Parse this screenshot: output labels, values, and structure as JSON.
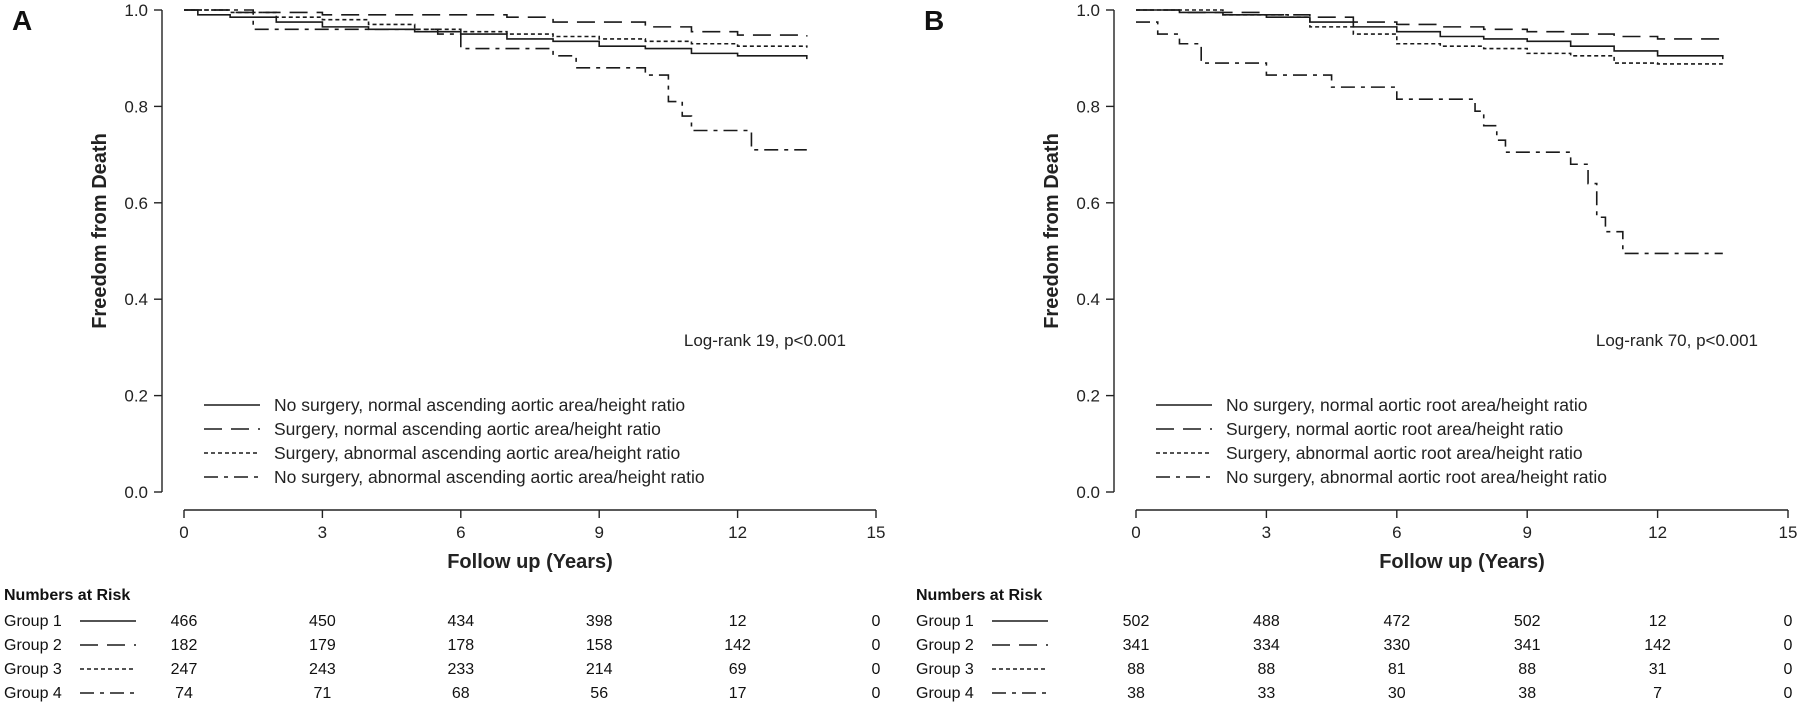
{
  "chart_data": [
    {
      "type": "line",
      "panel_label": "A",
      "xlabel": "Follow up (Years)",
      "ylabel": "Freedom from Death",
      "xlim": [
        0,
        15
      ],
      "ylim": [
        0,
        1.0
      ],
      "xticks": [
        "0",
        "3",
        "6",
        "9",
        "12",
        "15"
      ],
      "yticks": [
        "0.0",
        "0.2",
        "0.4",
        "0.6",
        "0.8",
        "1.0"
      ],
      "grid": false,
      "legend_position": "bottom-left",
      "annotation": "Log-rank 19, p<0.001",
      "series": [
        {
          "name": "No surgery, normal ascending aortic area/height ratio",
          "style": "solid",
          "points": [
            [
              0,
              1.0
            ],
            [
              0.3,
              0.99
            ],
            [
              1,
              0.985
            ],
            [
              2,
              0.975
            ],
            [
              3,
              0.965
            ],
            [
              4,
              0.96
            ],
            [
              5,
              0.955
            ],
            [
              6,
              0.95
            ],
            [
              7,
              0.94
            ],
            [
              8,
              0.935
            ],
            [
              9,
              0.925
            ],
            [
              10,
              0.92
            ],
            [
              11,
              0.91
            ],
            [
              12,
              0.905
            ],
            [
              13.5,
              0.898
            ]
          ]
        },
        {
          "name": "Surgery, normal ascending aortic area/height ratio",
          "style": "long-dash",
          "points": [
            [
              0,
              1.0
            ],
            [
              1,
              0.995
            ],
            [
              3,
              0.99
            ],
            [
              5,
              0.99
            ],
            [
              7,
              0.985
            ],
            [
              8,
              0.975
            ],
            [
              9,
              0.975
            ],
            [
              10,
              0.965
            ],
            [
              11,
              0.955
            ],
            [
              12,
              0.948
            ],
            [
              13.5,
              0.945
            ]
          ]
        },
        {
          "name": "Surgery, abnormal ascending aortic area/height ratio",
          "style": "short-dash",
          "points": [
            [
              0,
              1.0
            ],
            [
              1,
              0.995
            ],
            [
              2,
              0.985
            ],
            [
              3,
              0.98
            ],
            [
              4,
              0.97
            ],
            [
              5,
              0.96
            ],
            [
              6,
              0.955
            ],
            [
              7,
              0.95
            ],
            [
              8,
              0.945
            ],
            [
              9,
              0.94
            ],
            [
              10,
              0.935
            ],
            [
              11,
              0.93
            ],
            [
              12,
              0.925
            ],
            [
              13.5,
              0.922
            ]
          ]
        },
        {
          "name": "No surgery, abnormal ascending aortic area/height ratio",
          "style": "dash-dot",
          "points": [
            [
              0,
              1.0
            ],
            [
              1.5,
              0.96
            ],
            [
              3,
              0.96
            ],
            [
              5,
              0.96
            ],
            [
              5.5,
              0.95
            ],
            [
              6,
              0.92
            ],
            [
              7.5,
              0.92
            ],
            [
              8,
              0.905
            ],
            [
              8.5,
              0.88
            ],
            [
              9.5,
              0.88
            ],
            [
              10,
              0.865
            ],
            [
              10.5,
              0.81
            ],
            [
              10.8,
              0.78
            ],
            [
              11,
              0.75
            ],
            [
              12,
              0.75
            ],
            [
              12.3,
              0.71
            ],
            [
              13.5,
              0.71
            ]
          ]
        }
      ],
      "risk_table": {
        "title": "Numbers at Risk",
        "rows": [
          {
            "label": "Group 1",
            "style": "solid",
            "values": [
              "466",
              "450",
              "434",
              "398",
              "12",
              "0"
            ]
          },
          {
            "label": "Group 2",
            "style": "long-dash",
            "values": [
              "182",
              "179",
              "178",
              "158",
              "142",
              "0"
            ]
          },
          {
            "label": "Group 3",
            "style": "short-dash",
            "values": [
              "247",
              "243",
              "233",
              "214",
              "69",
              "0"
            ]
          },
          {
            "label": "Group 4",
            "style": "dash-dot",
            "values": [
              "74",
              "71",
              "68",
              "56",
              "17",
              "0"
            ]
          }
        ]
      }
    },
    {
      "type": "line",
      "panel_label": "B",
      "xlabel": "Follow up (Years)",
      "ylabel": "Freedom from Death",
      "xlim": [
        0,
        15
      ],
      "ylim": [
        0,
        1.0
      ],
      "xticks": [
        "0",
        "3",
        "6",
        "9",
        "12",
        "15"
      ],
      "yticks": [
        "0.0",
        "0.2",
        "0.4",
        "0.6",
        "0.8",
        "1.0"
      ],
      "grid": false,
      "legend_position": "bottom-left",
      "annotation": "Log-rank 70, p<0.001",
      "series": [
        {
          "name": "No surgery, normal aortic root area/height ratio",
          "style": "solid",
          "points": [
            [
              0,
              1.0
            ],
            [
              1,
              0.995
            ],
            [
              2,
              0.99
            ],
            [
              3,
              0.985
            ],
            [
              4,
              0.975
            ],
            [
              5,
              0.965
            ],
            [
              6,
              0.955
            ],
            [
              7,
              0.945
            ],
            [
              8,
              0.94
            ],
            [
              9,
              0.935
            ],
            [
              10,
              0.925
            ],
            [
              11,
              0.915
            ],
            [
              12,
              0.905
            ],
            [
              13.5,
              0.898
            ]
          ]
        },
        {
          "name": "Surgery, normal aortic root area/height ratio",
          "style": "long-dash",
          "points": [
            [
              0,
              1.0
            ],
            [
              1,
              0.995
            ],
            [
              3,
              0.99
            ],
            [
              4,
              0.985
            ],
            [
              5,
              0.975
            ],
            [
              6,
              0.97
            ],
            [
              7,
              0.965
            ],
            [
              8,
              0.96
            ],
            [
              9,
              0.955
            ],
            [
              10,
              0.95
            ],
            [
              11,
              0.945
            ],
            [
              12,
              0.94
            ],
            [
              13.5,
              0.938
            ]
          ]
        },
        {
          "name": "Surgery, abnormal aortic root area/height ratio",
          "style": "short-dash",
          "points": [
            [
              0,
              1.0
            ],
            [
              1,
              1.0
            ],
            [
              2,
              0.99
            ],
            [
              3.5,
              0.985
            ],
            [
              4,
              0.965
            ],
            [
              5,
              0.95
            ],
            [
              6,
              0.93
            ],
            [
              7,
              0.925
            ],
            [
              8,
              0.92
            ],
            [
              9,
              0.91
            ],
            [
              10,
              0.905
            ],
            [
              11,
              0.89
            ],
            [
              12,
              0.888
            ],
            [
              13.5,
              0.888
            ]
          ]
        },
        {
          "name": "No surgery, abnormal aortic root area/height ratio",
          "style": "dash-dot",
          "points": [
            [
              0,
              0.975
            ],
            [
              0.5,
              0.95
            ],
            [
              1,
              0.93
            ],
            [
              1.5,
              0.89
            ],
            [
              2.5,
              0.89
            ],
            [
              3,
              0.865
            ],
            [
              4,
              0.865
            ],
            [
              4.5,
              0.84
            ],
            [
              5.5,
              0.84
            ],
            [
              6,
              0.815
            ],
            [
              7.5,
              0.815
            ],
            [
              7.8,
              0.79
            ],
            [
              8,
              0.76
            ],
            [
              8.3,
              0.73
            ],
            [
              8.5,
              0.705
            ],
            [
              9.5,
              0.705
            ],
            [
              10,
              0.68
            ],
            [
              10.4,
              0.64
            ],
            [
              10.6,
              0.57
            ],
            [
              10.8,
              0.54
            ],
            [
              11.2,
              0.495
            ],
            [
              13.5,
              0.495
            ]
          ]
        }
      ],
      "risk_table": {
        "title": "Numbers at Risk",
        "rows": [
          {
            "label": "Group 1",
            "style": "solid",
            "values": [
              "502",
              "488",
              "472",
              "502",
              "12",
              "0"
            ]
          },
          {
            "label": "Group 2",
            "style": "long-dash",
            "values": [
              "341",
              "334",
              "330",
              "341",
              "142",
              "0"
            ]
          },
          {
            "label": "Group 3",
            "style": "short-dash",
            "values": [
              "88",
              "88",
              "81",
              "88",
              "31",
              "0"
            ]
          },
          {
            "label": "Group 4",
            "style": "dash-dot",
            "values": [
              "38",
              "33",
              "30",
              "38",
              "7",
              "0"
            ]
          }
        ]
      }
    }
  ]
}
